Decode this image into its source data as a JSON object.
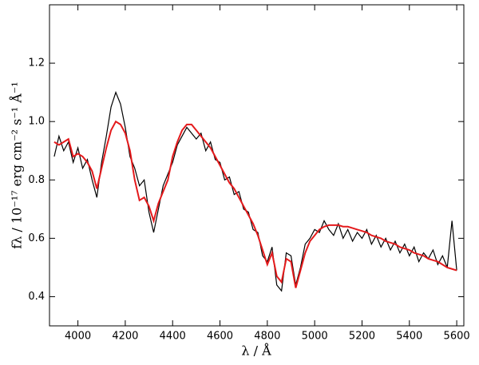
{
  "chart_data": {
    "type": "line",
    "x_label": "λ / Å",
    "y_label": "fλ / 10⁻¹⁷ erg cm⁻² s⁻¹ Å⁻¹",
    "x": [
      3900,
      3920,
      3940,
      3960,
      3980,
      4000,
      4020,
      4040,
      4060,
      4080,
      4100,
      4120,
      4140,
      4160,
      4180,
      4200,
      4220,
      4240,
      4260,
      4280,
      4300,
      4320,
      4340,
      4360,
      4380,
      4400,
      4420,
      4440,
      4460,
      4480,
      4500,
      4520,
      4540,
      4560,
      4580,
      4600,
      4620,
      4640,
      4660,
      4680,
      4700,
      4720,
      4740,
      4760,
      4780,
      4800,
      4820,
      4840,
      4860,
      4880,
      4900,
      4920,
      4940,
      4960,
      4980,
      5000,
      5020,
      5040,
      5060,
      5080,
      5100,
      5120,
      5140,
      5160,
      5180,
      5200,
      5220,
      5240,
      5260,
      5280,
      5300,
      5320,
      5340,
      5360,
      5380,
      5400,
      5420,
      5440,
      5460,
      5480,
      5500,
      5520,
      5540,
      5560,
      5580,
      5600
    ],
    "series": [
      {
        "color": "#000000",
        "values": [
          0.88,
          0.95,
          0.9,
          0.93,
          0.86,
          0.91,
          0.84,
          0.87,
          0.8,
          0.74,
          0.86,
          0.95,
          1.05,
          1.1,
          1.06,
          0.98,
          0.88,
          0.84,
          0.78,
          0.8,
          0.69,
          0.62,
          0.7,
          0.78,
          0.82,
          0.86,
          0.92,
          0.95,
          0.98,
          0.96,
          0.94,
          0.96,
          0.9,
          0.93,
          0.87,
          0.86,
          0.8,
          0.81,
          0.75,
          0.76,
          0.7,
          0.69,
          0.63,
          0.62,
          0.54,
          0.52,
          0.57,
          0.44,
          0.42,
          0.55,
          0.54,
          0.44,
          0.5,
          0.58,
          0.6,
          0.63,
          0.62,
          0.66,
          0.63,
          0.61,
          0.65,
          0.6,
          0.63,
          0.59,
          0.62,
          0.6,
          0.63,
          0.58,
          0.61,
          0.57,
          0.6,
          0.56,
          0.59,
          0.55,
          0.58,
          0.54,
          0.57,
          0.52,
          0.55,
          0.53,
          0.56,
          0.51,
          0.54,
          0.5,
          0.66,
          0.49
        ]
      },
      {
        "color": "#e41a1c",
        "values": [
          0.93,
          0.92,
          0.93,
          0.94,
          0.88,
          0.89,
          0.88,
          0.86,
          0.83,
          0.77,
          0.84,
          0.91,
          0.97,
          1.0,
          0.99,
          0.96,
          0.9,
          0.8,
          0.73,
          0.74,
          0.71,
          0.66,
          0.72,
          0.76,
          0.8,
          0.88,
          0.93,
          0.97,
          0.99,
          0.99,
          0.97,
          0.95,
          0.93,
          0.91,
          0.88,
          0.85,
          0.82,
          0.79,
          0.77,
          0.74,
          0.71,
          0.68,
          0.65,
          0.61,
          0.56,
          0.51,
          0.55,
          0.47,
          0.45,
          0.53,
          0.52,
          0.43,
          0.49,
          0.55,
          0.59,
          0.61,
          0.63,
          0.64,
          0.645,
          0.645,
          0.645,
          0.64,
          0.64,
          0.635,
          0.63,
          0.625,
          0.62,
          0.61,
          0.605,
          0.6,
          0.59,
          0.585,
          0.58,
          0.57,
          0.565,
          0.56,
          0.55,
          0.545,
          0.54,
          0.53,
          0.525,
          0.52,
          0.51,
          0.5,
          0.495,
          0.49
        ]
      }
    ],
    "xlim": [
      3880,
      5630
    ],
    "ylim": [
      0.3,
      1.4
    ],
    "xticks": [
      4000,
      4200,
      4400,
      4600,
      4800,
      5000,
      5200,
      5400,
      5600
    ],
    "yticks": [
      0.4,
      0.6,
      0.8,
      {
        "value": 1.0,
        "label": "1.0"
      },
      1.2
    ]
  }
}
